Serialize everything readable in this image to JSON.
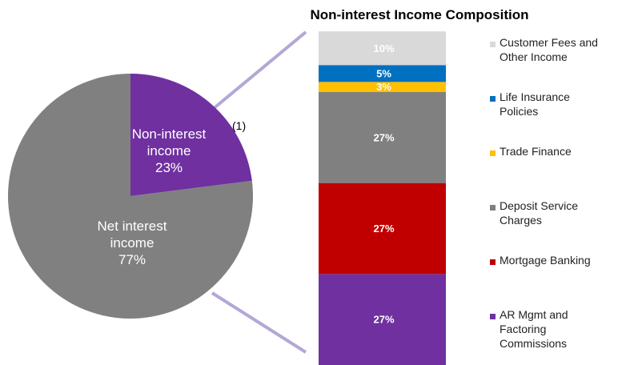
{
  "chart_data": [
    {
      "type": "pie",
      "title": "",
      "footnote": "(1)",
      "slices": [
        {
          "name": "Non-interest income",
          "value": 23,
          "label": "23%",
          "color": "#7030a0"
        },
        {
          "name": "Net interest income",
          "value": 77,
          "label": "77%",
          "color": "#808080"
        }
      ]
    },
    {
      "type": "bar",
      "stacked": true,
      "title": "Non-interest Income Composition",
      "ylim": [
        0,
        100
      ],
      "series": [
        {
          "name": "AR Mgmt and Factoring Commissions",
          "value": 27,
          "label": "27%",
          "color": "#7030a0"
        },
        {
          "name": "Mortgage Banking",
          "value": 27,
          "label": "27%",
          "color": "#c00000"
        },
        {
          "name": "Deposit Service Charges",
          "value": 27,
          "label": "27%",
          "color": "#808080"
        },
        {
          "name": "Trade Finance",
          "value": 3,
          "label": "3%",
          "color": "#ffc000"
        },
        {
          "name": "Life Insurance Policies",
          "value": 5,
          "label": "5%",
          "color": "#0070c0"
        },
        {
          "name": "Customer Fees and Other Income",
          "value": 10,
          "label": "10%",
          "color": "#d9d9d9"
        }
      ],
      "legend": [
        {
          "lines": [
            "Customer Fees and",
            "Other Income"
          ],
          "color": "#d9d9d9"
        },
        {
          "lines": [
            "Life Insurance",
            "Policies"
          ],
          "color": "#0070c0"
        },
        {
          "lines": [
            "Trade Finance"
          ],
          "color": "#ffc000"
        },
        {
          "lines": [
            "Deposit Service",
            "Charges"
          ],
          "color": "#808080"
        },
        {
          "lines": [
            "Mortgage Banking"
          ],
          "color": "#c00000"
        },
        {
          "lines": [
            "AR Mgmt and",
            "Factoring",
            "Commissions"
          ],
          "color": "#7030a0"
        }
      ]
    }
  ],
  "connector_color": "#b4a7d6"
}
